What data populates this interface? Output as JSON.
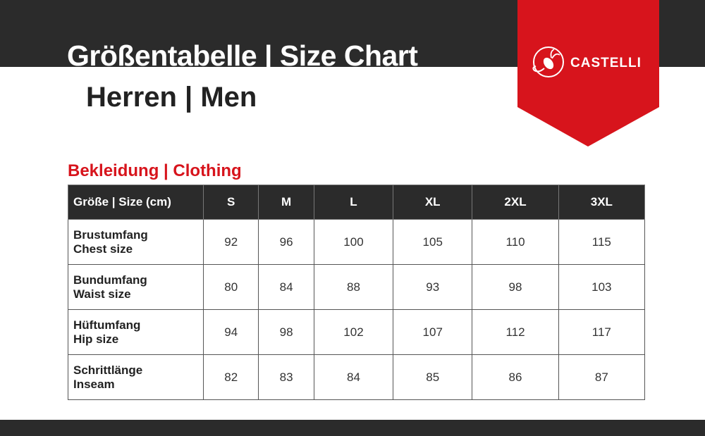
{
  "header": {
    "title": "Größentabelle | Size Chart",
    "subtitle": "Herren | Men",
    "brand": "castelli",
    "brand_icon": "scorpion-icon",
    "colors": {
      "dark": "#2b2b2b",
      "brand_red": "#d7141c"
    }
  },
  "section": {
    "title": "Bekleidung | Clothing"
  },
  "table": {
    "header_label": "Größe | Size (cm)",
    "sizes": [
      "S",
      "M",
      "L",
      "XL",
      "2XL",
      "3XL"
    ],
    "rows": [
      {
        "label_de": "Brustumfang",
        "label_en": "Chest size",
        "values": [
          "92",
          "96",
          "100",
          "105",
          "110",
          "115"
        ]
      },
      {
        "label_de": "Bundumfang",
        "label_en": "Waist size",
        "values": [
          "80",
          "84",
          "88",
          "93",
          "98",
          "103"
        ]
      },
      {
        "label_de": "Hüftumfang",
        "label_en": "Hip size",
        "values": [
          "94",
          "98",
          "102",
          "107",
          "112",
          "117"
        ]
      },
      {
        "label_de": "Schrittlänge",
        "label_en": "Inseam",
        "values": [
          "82",
          "83",
          "84",
          "85",
          "86",
          "87"
        ]
      }
    ]
  }
}
